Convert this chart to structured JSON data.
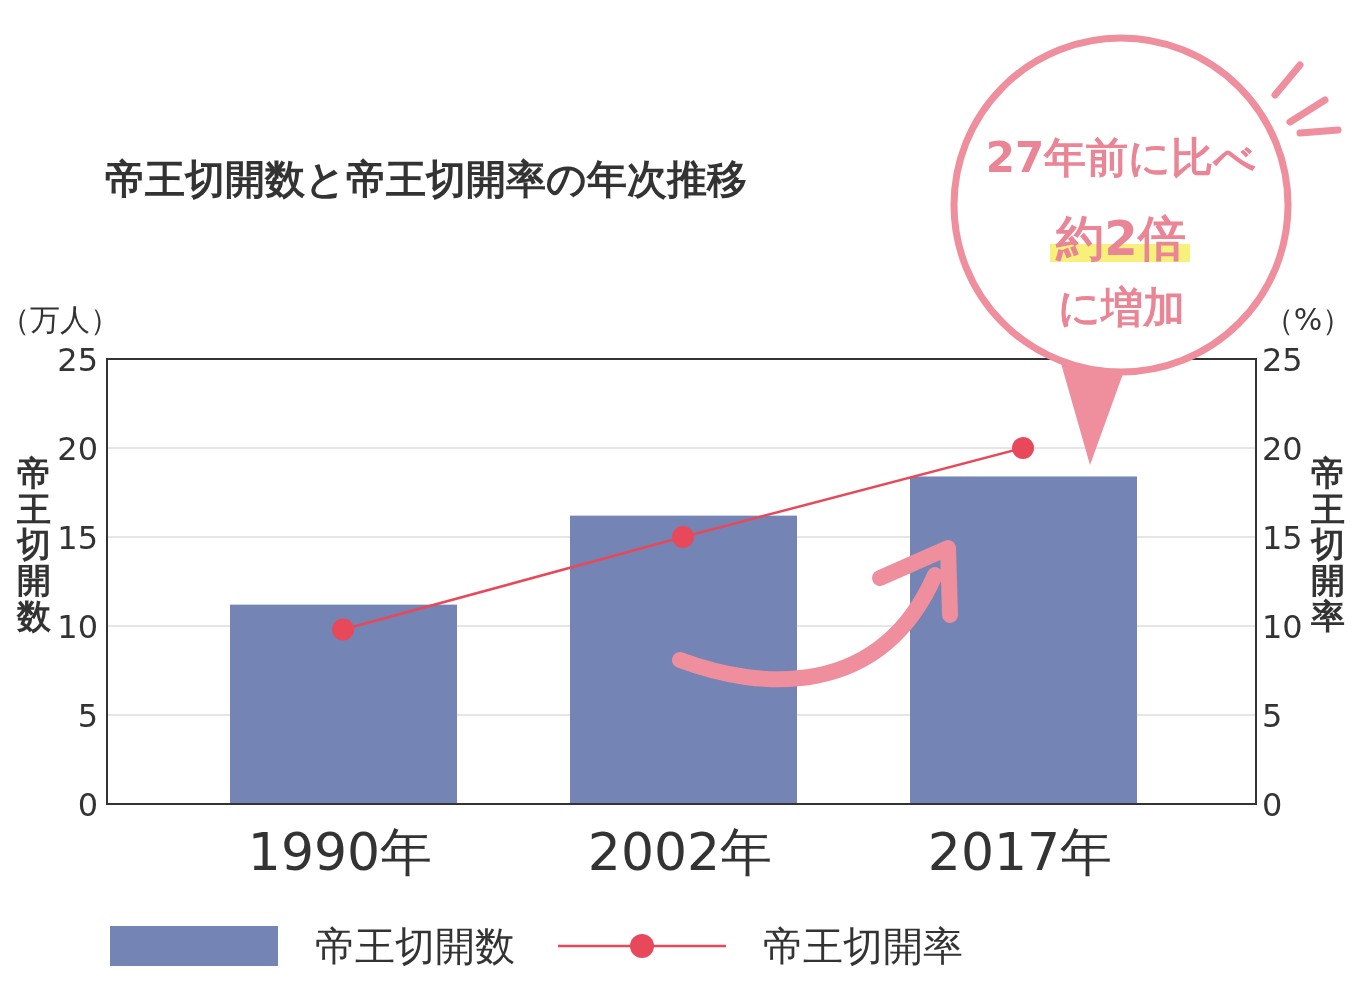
{
  "chart_data": {
    "type": "bar",
    "title": "帝王切開数と帝王切開率の年次推移",
    "ylabel": "帝王切開数",
    "y2label": "帝王切開率",
    "categories": [
      "1990年",
      "2002年",
      "2017年"
    ],
    "series": [
      {
        "name": "帝王切開数",
        "color": "#7484b4",
        "values": [
          11.2,
          16.2,
          18.4
        ]
      },
      {
        "name": "帝王切開率",
        "type": "line",
        "axis": "y2",
        "color": "#e8495a",
        "values": [
          9.8,
          15,
          20
        ]
      }
    ],
    "ylim": [
      0,
      25
    ],
    "yticks": [
      0,
      5,
      10,
      15,
      20,
      25
    ],
    "y2lim": [
      0,
      25
    ],
    "y2ticks": [
      0,
      5,
      10,
      15,
      20,
      25
    ],
    "grid": "y",
    "legend": "bottom",
    "marker": "circle",
    "line_style": "solid",
    "annotations": [
      "（万人）",
      "（%）",
      "27年前に比べ",
      "約2倍",
      "に増加"
    ]
  }
}
